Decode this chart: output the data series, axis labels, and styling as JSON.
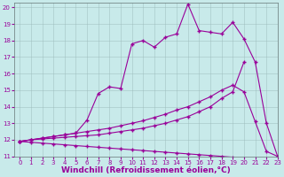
{
  "xlabel": "Windchill (Refroidissement éolien,°C)",
  "bg_color": "#c8eaea",
  "line_color": "#990099",
  "xlim": [
    -0.5,
    23
  ],
  "ylim": [
    11,
    20.3
  ],
  "xticks": [
    0,
    1,
    2,
    3,
    4,
    5,
    6,
    7,
    8,
    9,
    10,
    11,
    12,
    13,
    14,
    15,
    16,
    17,
    18,
    19,
    20,
    21,
    22,
    23
  ],
  "yticks": [
    11,
    12,
    13,
    14,
    15,
    16,
    17,
    18,
    19,
    20
  ],
  "curve1_x": [
    0,
    1,
    2,
    3,
    4,
    5,
    6,
    7,
    8,
    9,
    10,
    11,
    12,
    13,
    14,
    15,
    16,
    17,
    18,
    19,
    20,
    21,
    22,
    23
  ],
  "curve1_y": [
    11.9,
    12.0,
    12.1,
    12.2,
    12.3,
    12.4,
    13.2,
    14.8,
    15.2,
    15.1,
    17.8,
    18.0,
    17.6,
    18.2,
    18.4,
    20.2,
    18.6,
    18.5,
    18.4,
    19.1,
    18.1,
    16.7,
    13.0,
    11.0
  ],
  "curve2_x": [
    0,
    1,
    2,
    3,
    4,
    5,
    6,
    7,
    8,
    9,
    10,
    11,
    12,
    13,
    14,
    15,
    16,
    17,
    18,
    19,
    20,
    21,
    22,
    23
  ],
  "curve2_y": [
    11.9,
    12.0,
    12.1,
    12.2,
    12.3,
    12.4,
    12.5,
    12.6,
    12.7,
    12.85,
    13.0,
    13.15,
    13.35,
    13.55,
    13.8,
    14.0,
    14.3,
    14.6,
    15.0,
    15.3,
    14.9,
    13.1,
    11.3,
    11.0
  ],
  "curve3_x": [
    0,
    1,
    2,
    3,
    4,
    5,
    6,
    7,
    8,
    9,
    10,
    11,
    12,
    13,
    14,
    15,
    16,
    17,
    18,
    19,
    20,
    21,
    22,
    23
  ],
  "curve3_y": [
    11.9,
    12.0,
    12.05,
    12.1,
    12.15,
    12.2,
    12.25,
    12.3,
    12.4,
    12.5,
    12.6,
    12.7,
    12.85,
    13.0,
    13.2,
    13.4,
    13.7,
    14.0,
    14.5,
    14.9,
    16.7,
    null,
    null,
    null
  ],
  "curve4_x": [
    0,
    1,
    2,
    3,
    4,
    5,
    6,
    7,
    8,
    9,
    10,
    11,
    12,
    13,
    14,
    15,
    16,
    17,
    18,
    19,
    20,
    21,
    22,
    23
  ],
  "curve4_y": [
    11.9,
    11.85,
    11.8,
    11.75,
    11.7,
    11.65,
    11.6,
    11.55,
    11.5,
    11.45,
    11.4,
    11.35,
    11.3,
    11.25,
    11.2,
    11.15,
    11.1,
    11.05,
    11.0,
    10.95,
    null,
    null,
    null,
    null
  ],
  "marker": "+",
  "markersize": 3,
  "linewidth": 0.8,
  "tick_fontsize": 5,
  "xlabel_fontsize": 6.5,
  "grid_color": "#9bbaba",
  "grid_alpha": 0.8
}
